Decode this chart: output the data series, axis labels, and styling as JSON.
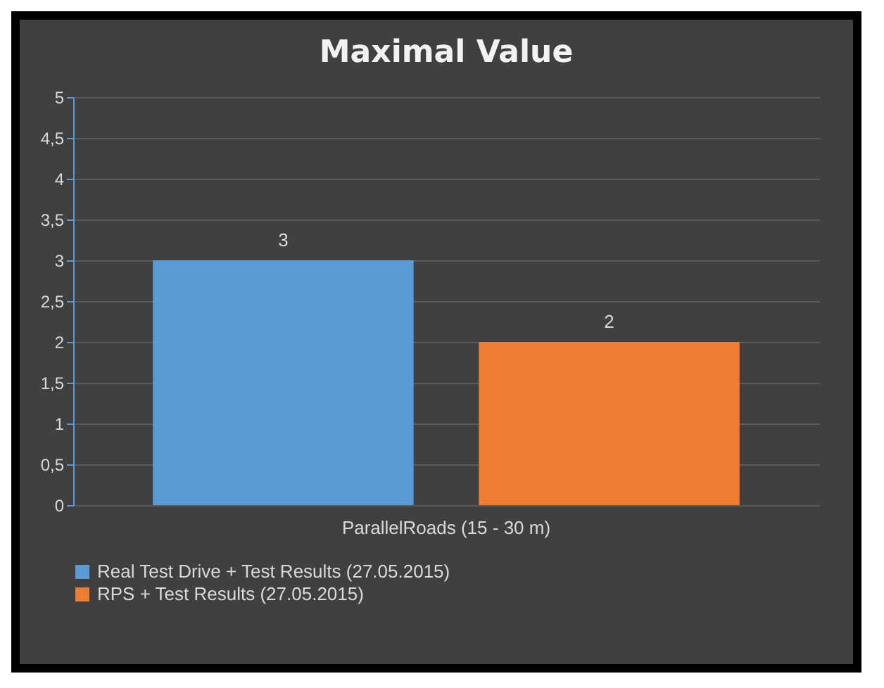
{
  "chart_data": {
    "type": "bar",
    "title": "Maximal Value",
    "categories": [
      "ParallelRoads (15 - 30 m)"
    ],
    "series": [
      {
        "name": "Real Test Drive + Test Results (27.05.2015)",
        "color": "#5b9bd5",
        "values": [
          3
        ]
      },
      {
        "name": "RPS + Test Results (27.05.2015)",
        "color": "#ed7d31",
        "values": [
          2
        ]
      }
    ],
    "ylim": [
      0,
      5
    ],
    "yticks": [
      0,
      {
        "value": 0.5,
        "label": "0,5"
      },
      1,
      {
        "value": 1.5,
        "label": "1,5"
      },
      2,
      {
        "value": 2.5,
        "label": "2,5"
      },
      3,
      {
        "value": 3.5,
        "label": "3,5"
      },
      4,
      {
        "value": 4.5,
        "label": "4,5"
      },
      5
    ],
    "grid": "y",
    "legend": "bottom",
    "data_labels": true
  }
}
